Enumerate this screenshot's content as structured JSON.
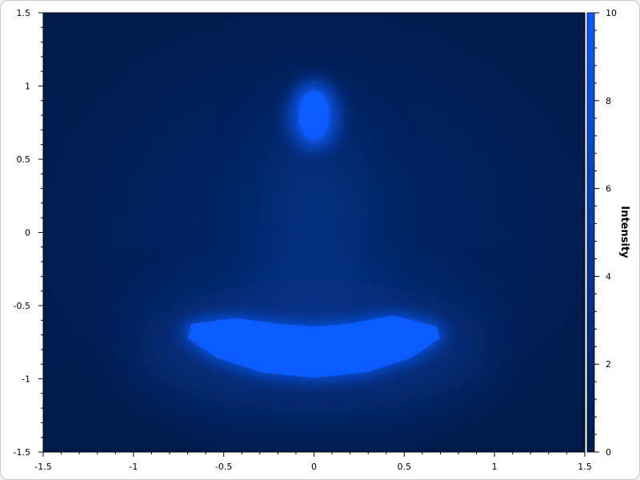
{
  "chart_data": {
    "type": "heatmap",
    "title": "",
    "xlabel": "",
    "ylabel": "",
    "xlim": [
      -1.5,
      1.5
    ],
    "ylim": [
      -1.5,
      1.5
    ],
    "x_ticks": [
      -1.5,
      -1,
      -0.5,
      0,
      0.5,
      1,
      1.5
    ],
    "x_tick_labels": [
      "-1.5",
      "-1",
      "-0.5",
      "0",
      "0.5",
      "1",
      "1.5"
    ],
    "y_ticks": [
      -1.5,
      -1,
      -0.5,
      0,
      0.5,
      1,
      1.5
    ],
    "y_tick_labels": [
      "-1.5",
      "-1",
      "-0.5",
      "0",
      "0.5",
      "1",
      "1.5"
    ],
    "grid": false,
    "colorbar": {
      "title": "Intensity",
      "range": [
        0,
        10
      ],
      "ticks": [
        0,
        2,
        4,
        6,
        8,
        10
      ],
      "tick_labels": [
        "0",
        "2",
        "4",
        "6",
        "8",
        "10"
      ],
      "low_color": "#001a4a",
      "high_color": "#0a5cff"
    },
    "background_value": 0.5,
    "features": [
      {
        "name": "upper-ellipse",
        "center": [
          0,
          0.8
        ],
        "radii": [
          0.1,
          0.2
        ],
        "value": 8.5
      },
      {
        "name": "lower-crescent",
        "center": [
          0,
          -0.72
        ],
        "half_width": 0.7,
        "value": 8.5
      }
    ]
  }
}
